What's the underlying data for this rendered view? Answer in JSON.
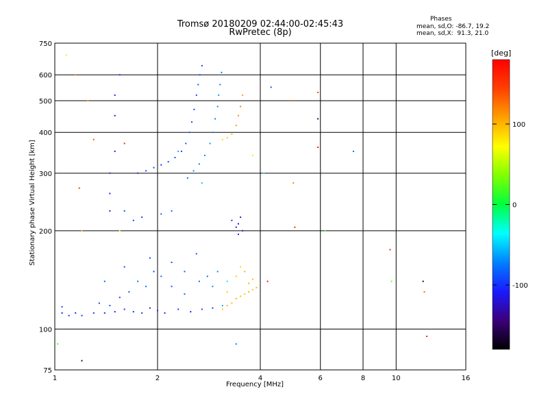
{
  "title": {
    "line1": "Tromsø 20180209 02:44:00-02:45:43",
    "line2": "RwPretec (8p)"
  },
  "stats": {
    "heading": "Phases",
    "line1": "mean, sd,O: -86.7, 19.2",
    "line2": "mean, sd,X:  91.3, 21.0"
  },
  "colorbar": {
    "label": "[deg]",
    "ticks": [
      "100",
      "0",
      "-100"
    ],
    "tick_values": [
      100,
      0,
      -100
    ],
    "range": [
      -180,
      180
    ],
    "colormap": [
      "#000000",
      "#3b007a",
      "#1a1aff",
      "#0080ff",
      "#00ffff",
      "#00ff40",
      "#80ff00",
      "#ffff00",
      "#ffa000",
      "#ff4000",
      "#ff0000"
    ]
  },
  "chart_data": {
    "type": "scatter",
    "title": "Tromsø 20180209 02:44:00-02:45:43",
    "subtitle": "RwPretec (8p)",
    "xlabel": "Frequency [MHz]",
    "ylabel": "Stationary phase Virtual Height [km]",
    "xscale": "log",
    "yscale": "log",
    "xlim": [
      1,
      16
    ],
    "ylim": [
      75,
      750
    ],
    "x_ticks": [
      1,
      2,
      4,
      6,
      8,
      10,
      16
    ],
    "x_tick_labels": [
      "1",
      "2",
      "4",
      "6",
      "8",
      "10",
      "16"
    ],
    "y_ticks": [
      75,
      100,
      200,
      300,
      400,
      500,
      600,
      750
    ],
    "y_tick_labels": [
      "75",
      "100",
      "200",
      "300",
      "400",
      "500",
      "600",
      "750"
    ],
    "grid": true,
    "color_by": "Phase [deg]",
    "series": [
      {
        "points": [
          [
            1.05,
            112,
            -110
          ],
          [
            1.1,
            110,
            -100
          ],
          [
            1.15,
            112,
            -105
          ],
          [
            1.2,
            110,
            -95
          ],
          [
            1.3,
            112,
            -100
          ],
          [
            1.35,
            120,
            -95
          ],
          [
            1.4,
            112,
            -105
          ],
          [
            1.45,
            118,
            -90
          ],
          [
            1.5,
            113,
            -110
          ],
          [
            1.55,
            125,
            -95
          ],
          [
            1.6,
            115,
            -100
          ],
          [
            1.65,
            130,
            -90
          ],
          [
            1.7,
            113,
            -105
          ],
          [
            1.75,
            140,
            -80
          ],
          [
            1.8,
            112,
            -100
          ],
          [
            1.85,
            135,
            -85
          ],
          [
            1.9,
            116,
            -110
          ],
          [
            1.95,
            150,
            -95
          ],
          [
            2.0,
            114,
            -100
          ],
          [
            2.05,
            145,
            -80
          ],
          [
            2.1,
            112,
            -105
          ],
          [
            2.2,
            160,
            -90
          ],
          [
            2.3,
            115,
            -100
          ],
          [
            2.4,
            150,
            -85
          ],
          [
            2.5,
            113,
            -110
          ],
          [
            2.6,
            170,
            -90
          ],
          [
            2.7,
            115,
            -95
          ],
          [
            2.8,
            145,
            -80
          ],
          [
            2.9,
            116,
            -100
          ],
          [
            3.0,
            150,
            -70
          ],
          [
            3.1,
            118,
            -60
          ],
          [
            3.2,
            140,
            -40
          ],
          [
            1.05,
            117,
            -95
          ],
          [
            1.4,
            140,
            -85
          ],
          [
            1.6,
            155,
            -90
          ],
          [
            1.9,
            165,
            -95
          ],
          [
            2.2,
            135,
            -90
          ],
          [
            2.4,
            128,
            -85
          ],
          [
            2.65,
            140,
            -80
          ],
          [
            2.9,
            135,
            -70
          ]
        ]
      },
      {
        "points": [
          [
            3.1,
            115,
            95
          ],
          [
            3.2,
            118,
            100
          ],
          [
            3.3,
            120,
            98
          ],
          [
            3.4,
            124,
            102
          ],
          [
            3.5,
            126,
            96
          ],
          [
            3.6,
            128,
            94
          ],
          [
            3.7,
            130,
            100
          ],
          [
            3.8,
            132,
            92
          ],
          [
            3.9,
            134,
            98
          ],
          [
            3.2,
            130,
            90
          ],
          [
            3.4,
            145,
            95
          ],
          [
            3.6,
            150,
            100
          ],
          [
            3.8,
            142,
            96
          ],
          [
            3.5,
            155,
            88
          ],
          [
            3.7,
            138,
            100
          ]
        ]
      },
      {
        "points": [
          [
            1.75,
            300,
            -100
          ],
          [
            1.85,
            305,
            -95
          ],
          [
            1.95,
            312,
            -90
          ],
          [
            2.05,
            318,
            -100
          ],
          [
            2.15,
            325,
            -95
          ],
          [
            2.25,
            335,
            -90
          ],
          [
            2.35,
            350,
            -95
          ],
          [
            2.42,
            370,
            -90
          ],
          [
            2.48,
            400,
            -85
          ],
          [
            2.52,
            430,
            -90
          ],
          [
            2.56,
            470,
            -95
          ],
          [
            2.6,
            520,
            -90
          ],
          [
            2.63,
            560,
            -85
          ],
          [
            2.66,
            600,
            -90
          ],
          [
            2.7,
            640,
            -95
          ]
        ]
      },
      {
        "points": [
          [
            2.45,
            290,
            -80
          ],
          [
            2.55,
            305,
            -70
          ],
          [
            2.65,
            320,
            -75
          ],
          [
            2.75,
            340,
            -70
          ],
          [
            2.85,
            370,
            -65
          ],
          [
            2.9,
            400,
            -70
          ],
          [
            2.95,
            440,
            -75
          ],
          [
            3.0,
            480,
            -70
          ],
          [
            3.02,
            520,
            -65
          ],
          [
            3.05,
            560,
            -70
          ],
          [
            3.08,
            610,
            -75
          ]
        ]
      },
      {
        "points": [
          [
            3.1,
            380,
            85
          ],
          [
            3.2,
            385,
            90
          ],
          [
            3.3,
            395,
            100
          ],
          [
            3.4,
            420,
            110
          ],
          [
            3.45,
            450,
            115
          ],
          [
            3.5,
            480,
            120
          ],
          [
            3.55,
            520,
            110
          ]
        ]
      },
      {
        "points": [
          [
            1.45,
            230,
            -120
          ],
          [
            1.45,
            260,
            -110
          ],
          [
            1.45,
            300,
            -100
          ],
          [
            1.5,
            350,
            -110
          ],
          [
            1.5,
            450,
            -120
          ],
          [
            1.5,
            520,
            -110
          ],
          [
            1.55,
            600,
            -100
          ],
          [
            1.6,
            230,
            -90
          ],
          [
            1.7,
            215,
            -95
          ],
          [
            1.8,
            220,
            -100
          ],
          [
            2.05,
            225,
            -85
          ],
          [
            2.2,
            230,
            -80
          ]
        ]
      },
      {
        "points": [
          [
            3.4,
            205,
            -115
          ],
          [
            3.45,
            210,
            -120
          ],
          [
            3.5,
            220,
            -110
          ],
          [
            3.45,
            195,
            -105
          ],
          [
            3.3,
            215,
            -100
          ],
          [
            3.55,
            200,
            -125
          ]
        ]
      },
      {
        "points": [
          [
            1.08,
            690,
            60
          ],
          [
            1.15,
            600,
            120
          ],
          [
            1.25,
            500,
            110
          ],
          [
            1.18,
            270,
            150
          ],
          [
            1.3,
            380,
            140
          ],
          [
            1.6,
            370,
            160
          ],
          [
            1.55,
            200,
            70
          ],
          [
            1.2,
            200,
            100
          ],
          [
            4.2,
            140,
            170
          ],
          [
            4.3,
            550,
            -90
          ],
          [
            4.9,
            500,
            130
          ],
          [
            5.0,
            280,
            120
          ],
          [
            5.05,
            205,
            160
          ],
          [
            5.9,
            530,
            150
          ],
          [
            5.9,
            360,
            170
          ],
          [
            5.9,
            440,
            -150
          ],
          [
            6.2,
            200,
            10
          ],
          [
            7.5,
            350,
            -80
          ],
          [
            9.6,
            175,
            160
          ],
          [
            9.7,
            140,
            30
          ],
          [
            12.0,
            140,
            -160
          ],
          [
            12.1,
            130,
            130
          ],
          [
            12.3,
            95,
            170
          ],
          [
            1.2,
            80,
            -160
          ],
          [
            1.02,
            90,
            20
          ],
          [
            3.4,
            90,
            -70
          ],
          [
            3.8,
            340,
            60
          ],
          [
            4.1,
            300,
            -40
          ],
          [
            2.3,
            350,
            -60
          ],
          [
            2.7,
            280,
            -50
          ]
        ]
      }
    ]
  }
}
